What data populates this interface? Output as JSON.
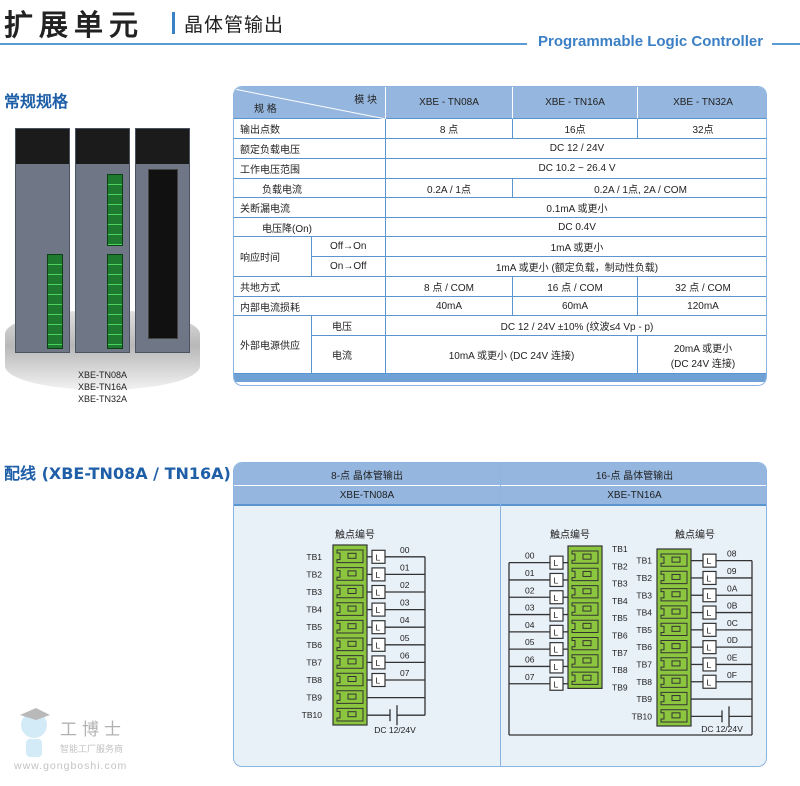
{
  "header": {
    "title": "扩展单元",
    "subtitle": "晶体管输出",
    "tagline": "Programmable Logic Controller"
  },
  "sections": {
    "spec": "常规规格",
    "wiring": "配线 (XBE-TN08A / TN16A)"
  },
  "product": {
    "models": [
      "XBE-TN08A",
      "XBE-TN16A",
      "XBE-TN32A"
    ]
  },
  "spec_table": {
    "corner_top": "模 块",
    "corner_bottom": "规 格",
    "columns": [
      "XBE - TN08A",
      "XBE - TN16A",
      "XBE - TN32A"
    ],
    "rows": {
      "outputs": {
        "label": "输出点数",
        "values": [
          "8 点",
          "16点",
          "32点"
        ]
      },
      "rated_voltage": {
        "label": "额定负载电压",
        "value": "DC 12 / 24V"
      },
      "voltage_range": {
        "label": "工作电压范围",
        "value": "DC 10.2 ~ 26.4 V"
      },
      "load_current": {
        "label": "负载电流",
        "values": [
          "0.2A / 1点",
          "0.2A / 1点, 2A / COM"
        ]
      },
      "leakage": {
        "label": "关断漏电流",
        "value": "0.1mA 或更小"
      },
      "voltage_drop": {
        "label": "电压降(On)",
        "value": "DC 0.4V"
      },
      "response": {
        "label": "响应时间",
        "off_on_label": "Off→On",
        "off_on": "1mA 或更小",
        "on_off_label": "On→Off",
        "on_off": "1mA 或更小 (额定负载，制动性负载)"
      },
      "common": {
        "label": "共地方式",
        "values": [
          "8 点 / COM",
          "16 点 / COM",
          "32 点 / COM"
        ]
      },
      "internal_current": {
        "label": "内部电流损耗",
        "values": [
          "40mA",
          "60mA",
          "120mA"
        ]
      },
      "external": {
        "label": "外部电源供应",
        "voltage_label": "电压",
        "voltage": "DC 12 / 24V ±10% (纹波≤4 Vp - p)",
        "current_label": "电流",
        "current_a": "10mA 或更小 (DC 24V 连接)",
        "current_b1": "20mA  或更小",
        "current_b2": "(DC 24V 连接)"
      }
    }
  },
  "wiring": {
    "left": {
      "title": "8-点  晶体管输出",
      "model": "XBE-TN08A"
    },
    "right": {
      "title": "16-点  晶体管输出",
      "model": "XBE-TN16A"
    },
    "contact_label": "触点编号",
    "load_label": "L",
    "supply_label": "DC 12/24V",
    "tb": [
      "TB1",
      "TB2",
      "TB3",
      "TB4",
      "TB5",
      "TB6",
      "TB7",
      "TB8",
      "TB9",
      "TB10"
    ],
    "points_a": [
      "00",
      "01",
      "02",
      "03",
      "04",
      "05",
      "06",
      "07"
    ],
    "points_b": [
      "08",
      "09",
      "0A",
      "0B",
      "0C",
      "0D",
      "0E",
      "0F"
    ],
    "colors": {
      "terminal": "#8cc63f",
      "header": "#95b6de",
      "panel": "#e8f0f8"
    }
  },
  "watermark": {
    "brand": "工博士",
    "slogan": "智能工厂服务商",
    "url": "www.gongboshi.com"
  }
}
